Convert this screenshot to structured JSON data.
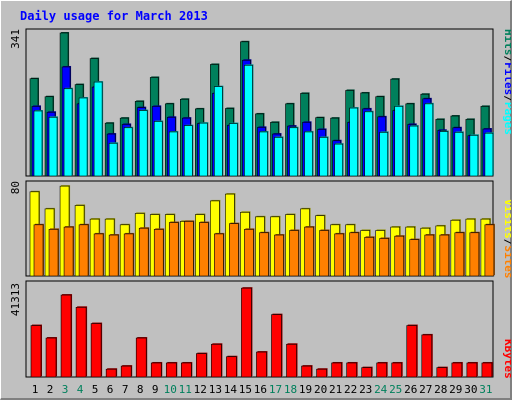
{
  "title": "Daily usage for March 2013",
  "colors": {
    "title": "#0000ff",
    "weekday": "#000000",
    "weekend": "#00805c",
    "hits": "#00805c",
    "files": "#0000ff",
    "pages": "#00ffff",
    "visits": "#ffff00",
    "sites": "#ff8000",
    "kbytes": "#ff0000",
    "separator": "#000000"
  },
  "separators": {
    "hits_files": "/",
    "files_pages": "/",
    "visits_sites": "/"
  },
  "chart_data": [
    {
      "type": "bar",
      "panel": "hits",
      "ytick": "341",
      "ylim": [
        0,
        341
      ],
      "categories": [
        "1",
        "2",
        "3",
        "4",
        "5",
        "6",
        "7",
        "8",
        "9",
        "10",
        "11",
        "12",
        "13",
        "14",
        "15",
        "16",
        "17",
        "18",
        "19",
        "20",
        "21",
        "22",
        "23",
        "24",
        "25",
        "26",
        "27",
        "28",
        "29",
        "30",
        "31"
      ],
      "series": [
        {
          "name": "Hits",
          "values": [
            232,
            189,
            341,
            218,
            280,
            126,
            138,
            178,
            235,
            172,
            183,
            160,
            266,
            161,
            320,
            148,
            128,
            172,
            197,
            139,
            138,
            204,
            198,
            189,
            231,
            172,
            195,
            135,
            143,
            135,
            166
          ]
        },
        {
          "name": "Files",
          "values": [
            166,
            152,
            260,
            172,
            212,
            100,
            123,
            163,
            166,
            140,
            138,
            125,
            197,
            121,
            276,
            116,
            100,
            119,
            128,
            111,
            84,
            128,
            160,
            141,
            156,
            123,
            184,
            109,
            115,
            96,
            112
          ]
        },
        {
          "name": "Pages",
          "values": [
            155,
            140,
            208,
            186,
            224,
            78,
            115,
            156,
            130,
            105,
            120,
            126,
            213,
            125,
            264,
            105,
            92,
            115,
            105,
            92,
            76,
            162,
            153,
            104,
            166,
            119,
            172,
            106,
            104,
            97,
            102
          ]
        }
      ]
    },
    {
      "type": "bar",
      "panel": "visits",
      "ytick": "80",
      "ylim": [
        0,
        80
      ],
      "categories": [
        "1",
        "2",
        "3",
        "4",
        "5",
        "6",
        "7",
        "8",
        "9",
        "10",
        "11",
        "12",
        "13",
        "14",
        "15",
        "16",
        "17",
        "18",
        "19",
        "20",
        "21",
        "22",
        "23",
        "24",
        "25",
        "26",
        "27",
        "28",
        "29",
        "30",
        "31"
      ],
      "series": [
        {
          "name": "Visits",
          "values": [
            74,
            59,
            79,
            62,
            50,
            50,
            45,
            55,
            54,
            54,
            48,
            54,
            66,
            72,
            56,
            52,
            52,
            54,
            59,
            53,
            45,
            45,
            40,
            40,
            43,
            43,
            42,
            44,
            49,
            50,
            50
          ]
        },
        {
          "name": "Sites",
          "values": [
            45,
            41,
            43,
            45,
            37,
            36,
            37,
            42,
            41,
            47,
            48,
            47,
            37,
            46,
            41,
            38,
            36,
            40,
            43,
            40,
            37,
            38,
            34,
            33,
            35,
            32,
            36,
            36,
            38,
            38,
            45
          ]
        }
      ]
    },
    {
      "type": "bar",
      "panel": "kbytes",
      "ytick": "41313",
      "ylim": [
        0,
        41313
      ],
      "categories": [
        "1",
        "2",
        "3",
        "4",
        "5",
        "6",
        "7",
        "8",
        "9",
        "10",
        "11",
        "12",
        "13",
        "14",
        "15",
        "16",
        "17",
        "18",
        "19",
        "20",
        "21",
        "22",
        "23",
        "24",
        "25",
        "26",
        "27",
        "28",
        "29",
        "30",
        "31"
      ],
      "series": [
        {
          "name": "KBytes",
          "values": [
            23100,
            17500,
            36800,
            31300,
            24000,
            3500,
            4900,
            17500,
            6300,
            6300,
            6300,
            10500,
            14700,
            9100,
            39900,
            11200,
            28000,
            14700,
            4900,
            3500,
            6300,
            6300,
            4200,
            6300,
            6300,
            23100,
            18900,
            4200,
            6300,
            6300,
            6300
          ]
        }
      ]
    }
  ]
}
